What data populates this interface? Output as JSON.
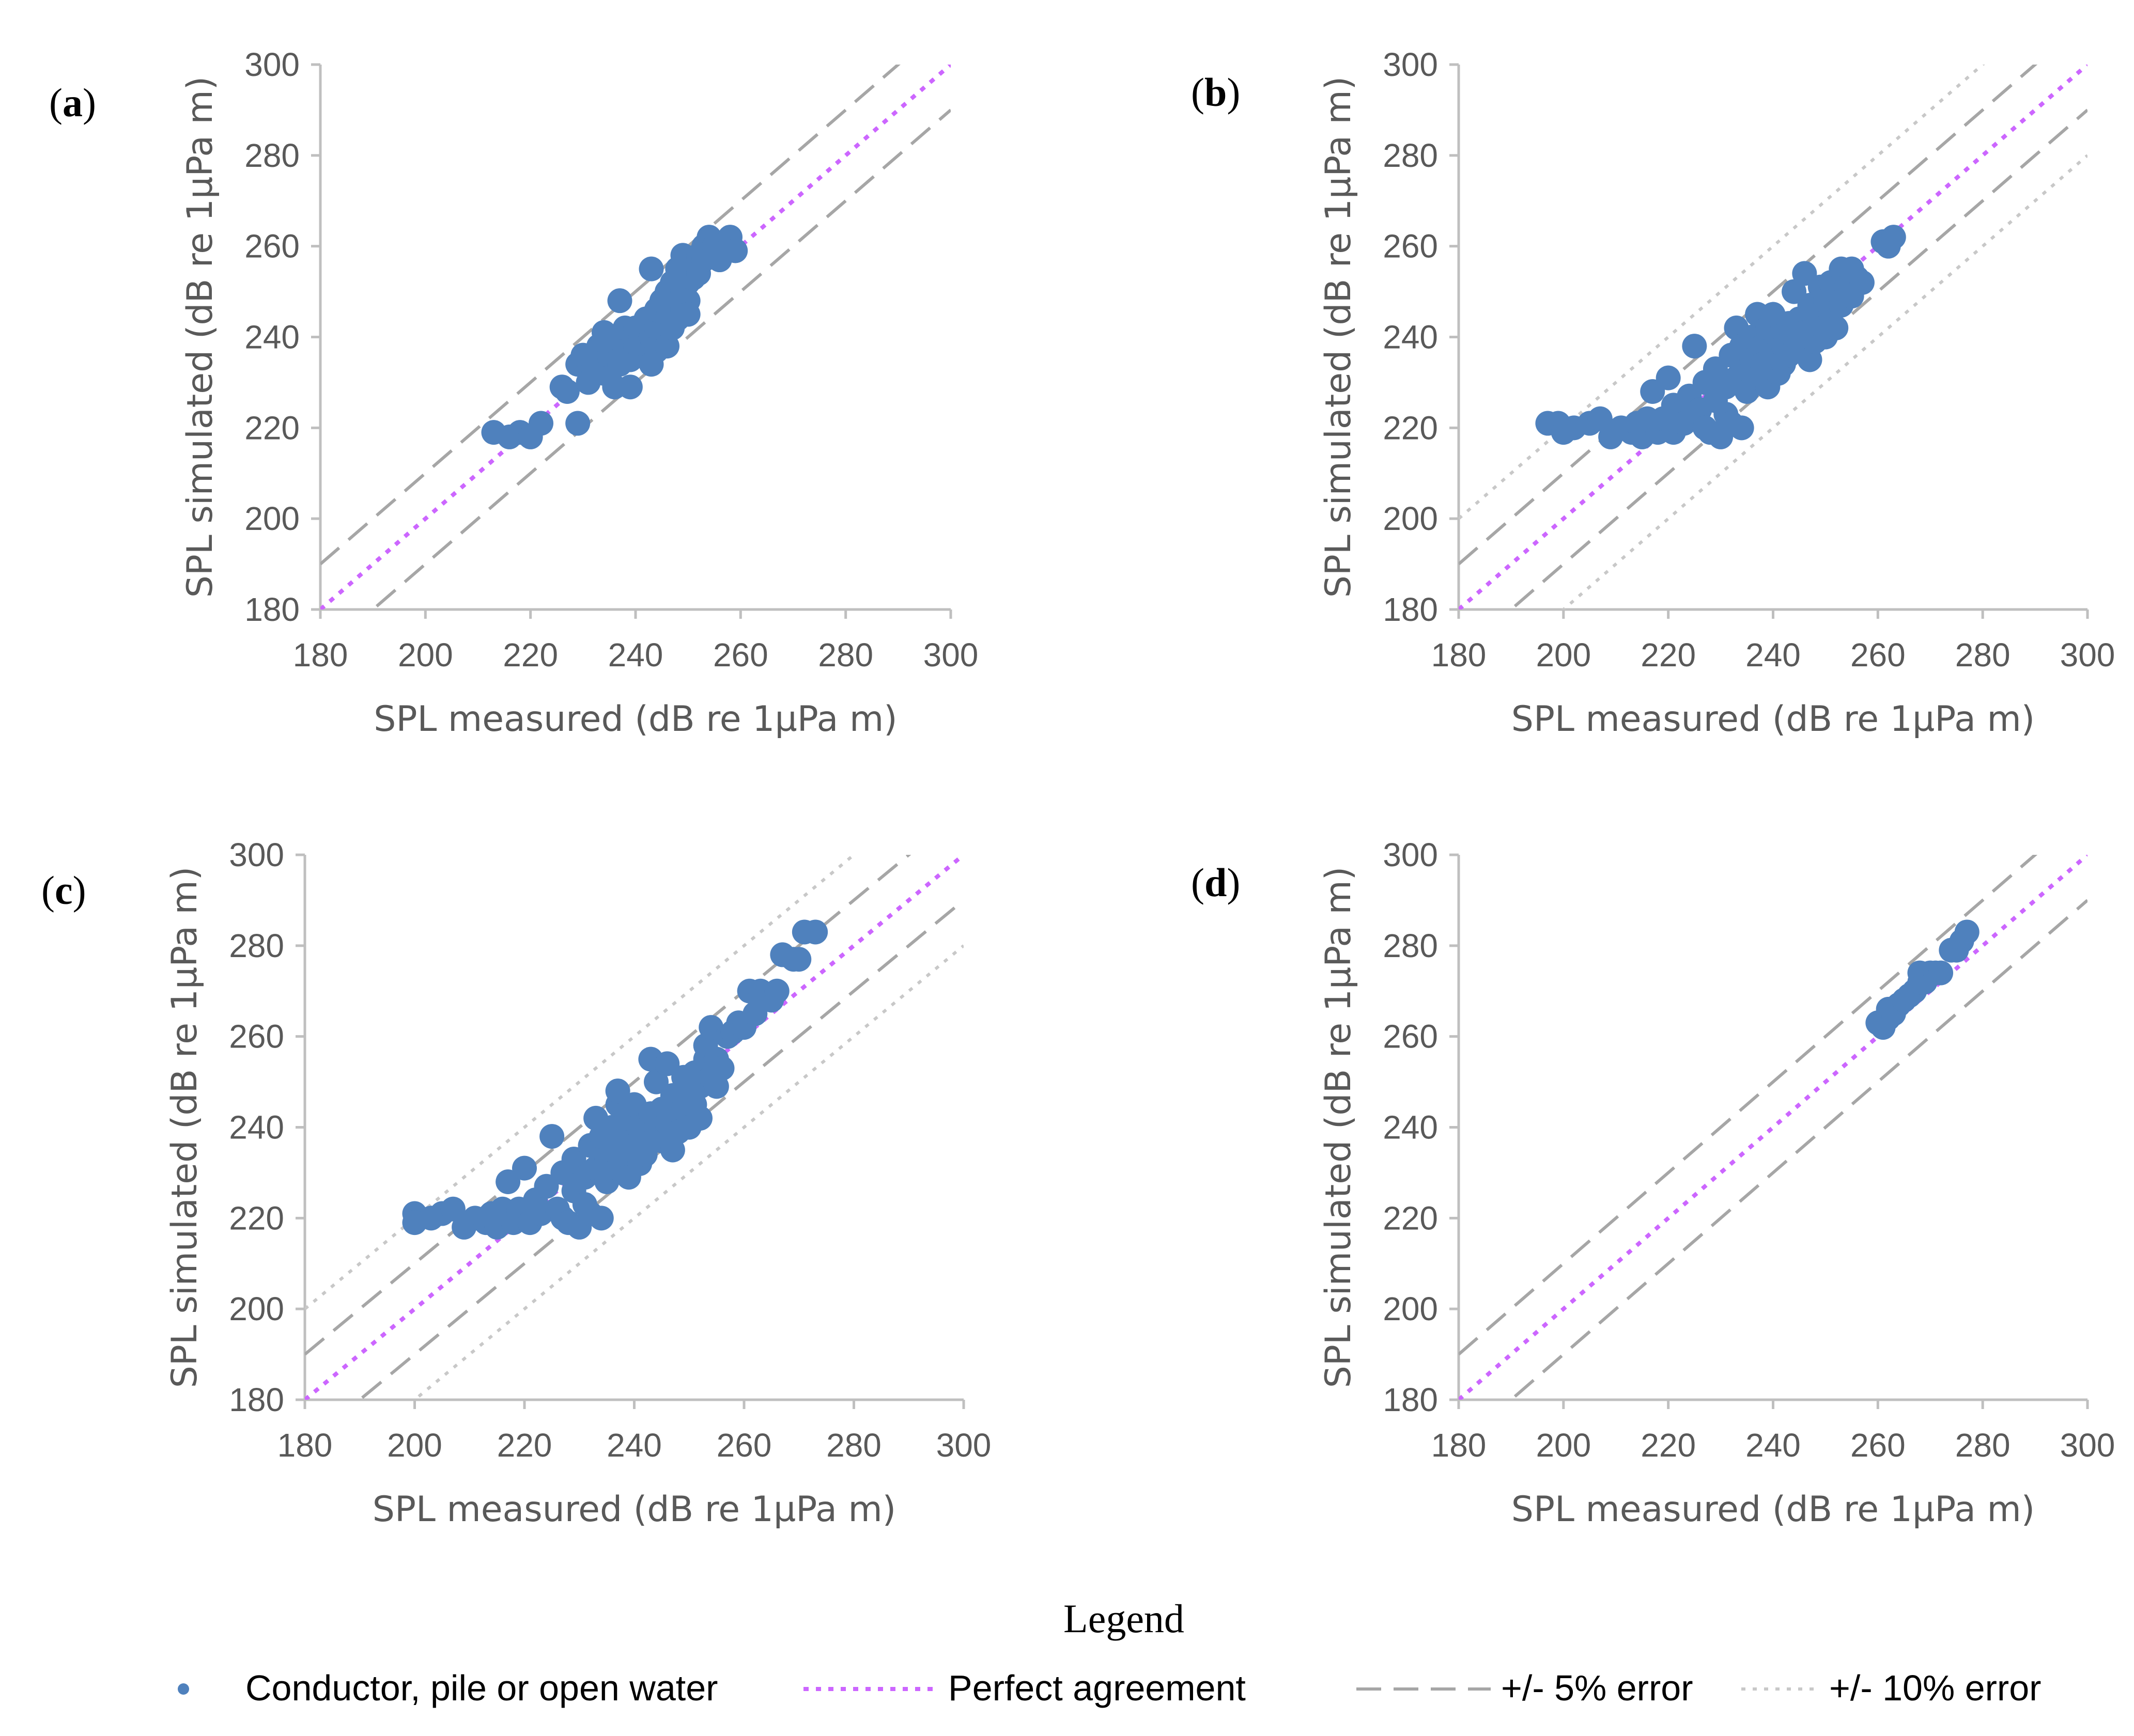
{
  "chart_data": [
    {
      "panel": "(a)",
      "type": "scatter",
      "xlabel": "SPL measured (dB re 1µPa m)",
      "ylabel": "SPL simulated (dB re 1µPa m)",
      "xlim": [
        180,
        300
      ],
      "ylim": [
        180,
        300
      ],
      "xticks": [
        180,
        200,
        220,
        240,
        260,
        280,
        300
      ],
      "yticks": [
        180,
        200,
        220,
        240,
        260,
        280,
        300
      ],
      "error_bands": [
        5
      ],
      "points": [
        [
          213,
          219
        ],
        [
          216,
          218
        ],
        [
          218,
          219
        ],
        [
          220,
          218
        ],
        [
          222,
          221
        ],
        [
          226,
          229
        ],
        [
          227,
          228
        ],
        [
          229,
          221
        ],
        [
          229,
          234
        ],
        [
          230,
          236
        ],
        [
          231,
          230
        ],
        [
          232,
          233
        ],
        [
          233,
          238
        ],
        [
          234,
          232
        ],
        [
          234,
          241
        ],
        [
          235,
          236
        ],
        [
          236,
          229
        ],
        [
          236,
          239
        ],
        [
          237,
          248
        ],
        [
          237,
          234
        ],
        [
          238,
          237
        ],
        [
          238,
          242
        ],
        [
          239,
          229
        ],
        [
          239,
          235
        ],
        [
          240,
          238
        ],
        [
          240,
          242
        ],
        [
          241,
          236
        ],
        [
          241,
          240
        ],
        [
          242,
          244
        ],
        [
          242,
          238
        ],
        [
          243,
          234
        ],
        [
          243,
          240
        ],
        [
          243,
          255
        ],
        [
          244,
          237
        ],
        [
          244,
          242
        ],
        [
          244,
          246
        ],
        [
          245,
          240
        ],
        [
          245,
          248
        ],
        [
          246,
          238
        ],
        [
          246,
          244
        ],
        [
          246,
          250
        ],
        [
          247,
          242
        ],
        [
          247,
          246
        ],
        [
          247,
          252
        ],
        [
          248,
          248
        ],
        [
          248,
          244
        ],
        [
          248,
          255
        ],
        [
          249,
          246
        ],
        [
          249,
          250
        ],
        [
          249,
          258
        ],
        [
          250,
          252
        ],
        [
          250,
          248
        ],
        [
          250,
          245
        ],
        [
          251,
          256
        ],
        [
          251,
          253
        ],
        [
          252,
          258
        ],
        [
          252,
          254
        ],
        [
          253,
          260
        ],
        [
          253,
          257
        ],
        [
          254,
          258
        ],
        [
          254,
          262
        ],
        [
          255,
          260
        ],
        [
          256,
          257
        ],
        [
          257,
          261
        ],
        [
          258,
          262
        ],
        [
          259,
          259
        ]
      ]
    },
    {
      "panel": "(b)",
      "type": "scatter",
      "xlabel": "SPL measured (dB re 1µPa m)",
      "ylabel": "SPL simulated (dB re 1µPa m)",
      "xlim": [
        180,
        300
      ],
      "ylim": [
        180,
        300
      ],
      "xticks": [
        180,
        200,
        220,
        240,
        260,
        280,
        300
      ],
      "yticks": [
        180,
        200,
        220,
        240,
        260,
        280,
        300
      ],
      "error_bands": [
        5,
        10
      ],
      "points": [
        [
          197,
          221
        ],
        [
          199,
          221
        ],
        [
          200,
          219
        ],
        [
          202,
          220
        ],
        [
          205,
          221
        ],
        [
          207,
          222
        ],
        [
          209,
          218
        ],
        [
          211,
          220
        ],
        [
          213,
          219
        ],
        [
          214,
          221
        ],
        [
          215,
          218
        ],
        [
          216,
          222
        ],
        [
          217,
          228
        ],
        [
          218,
          219
        ],
        [
          219,
          222
        ],
        [
          220,
          231
        ],
        [
          221,
          219
        ],
        [
          221,
          225
        ],
        [
          222,
          223
        ],
        [
          223,
          221
        ],
        [
          224,
          227
        ],
        [
          225,
          238
        ],
        [
          225,
          222
        ],
        [
          226,
          224
        ],
        [
          227,
          220
        ],
        [
          227,
          230
        ],
        [
          228,
          219
        ],
        [
          229,
          226
        ],
        [
          229,
          233
        ],
        [
          230,
          218
        ],
        [
          231,
          223
        ],
        [
          231,
          229
        ],
        [
          232,
          221
        ],
        [
          232,
          236
        ],
        [
          233,
          242
        ],
        [
          233,
          231
        ],
        [
          234,
          220
        ],
        [
          234,
          238
        ],
        [
          235,
          233
        ],
        [
          235,
          228
        ],
        [
          236,
          240
        ],
        [
          236,
          235
        ],
        [
          237,
          245
        ],
        [
          237,
          231
        ],
        [
          238,
          238
        ],
        [
          238,
          234
        ],
        [
          239,
          242
        ],
        [
          239,
          229
        ],
        [
          240,
          236
        ],
        [
          240,
          245
        ],
        [
          241,
          232
        ],
        [
          241,
          240
        ],
        [
          242,
          238
        ],
        [
          242,
          234
        ],
        [
          243,
          243
        ],
        [
          243,
          236
        ],
        [
          244,
          240
        ],
        [
          244,
          250
        ],
        [
          245,
          237
        ],
        [
          245,
          244
        ],
        [
          246,
          254
        ],
        [
          246,
          241
        ],
        [
          247,
          235
        ],
        [
          247,
          247
        ],
        [
          248,
          243
        ],
        [
          248,
          239
        ],
        [
          249,
          251
        ],
        [
          249,
          244
        ],
        [
          250,
          240
        ],
        [
          250,
          248
        ],
        [
          251,
          252
        ],
        [
          251,
          245
        ],
        [
          252,
          249
        ],
        [
          252,
          242
        ],
        [
          253,
          255
        ],
        [
          253,
          247
        ],
        [
          254,
          251
        ],
        [
          255,
          255
        ],
        [
          255,
          249
        ],
        [
          256,
          253
        ],
        [
          257,
          252
        ],
        [
          261,
          261
        ],
        [
          262,
          260
        ],
        [
          263,
          262
        ]
      ]
    },
    {
      "panel": "(c)",
      "type": "scatter",
      "xlabel": "SPL measured (dB re 1µPa m)",
      "ylabel": "SPL simulated (dB re 1µPa m)",
      "xlim": [
        180,
        300
      ],
      "ylim": [
        180,
        300
      ],
      "xticks": [
        180,
        200,
        220,
        240,
        260,
        280,
        300
      ],
      "yticks": [
        180,
        200,
        220,
        240,
        260,
        280,
        300
      ],
      "error_bands": [
        5,
        10
      ],
      "points": [
        [
          200,
          221
        ],
        [
          200,
          219
        ],
        [
          203,
          220
        ],
        [
          205,
          221
        ],
        [
          207,
          222
        ],
        [
          209,
          218
        ],
        [
          211,
          220
        ],
        [
          213,
          219
        ],
        [
          214,
          221
        ],
        [
          215,
          218
        ],
        [
          216,
          222
        ],
        [
          217,
          228
        ],
        [
          218,
          219
        ],
        [
          219,
          222
        ],
        [
          220,
          231
        ],
        [
          221,
          219
        ],
        [
          222,
          224
        ],
        [
          223,
          221
        ],
        [
          224,
          227
        ],
        [
          225,
          238
        ],
        [
          226,
          222
        ],
        [
          227,
          220
        ],
        [
          227,
          230
        ],
        [
          228,
          219
        ],
        [
          229,
          226
        ],
        [
          229,
          233
        ],
        [
          230,
          218
        ],
        [
          231,
          223
        ],
        [
          231,
          229
        ],
        [
          232,
          221
        ],
        [
          232,
          236
        ],
        [
          233,
          242
        ],
        [
          233,
          231
        ],
        [
          234,
          220
        ],
        [
          234,
          238
        ],
        [
          235,
          233
        ],
        [
          235,
          228
        ],
        [
          236,
          240
        ],
        [
          236,
          235
        ],
        [
          237,
          245
        ],
        [
          237,
          231
        ],
        [
          237,
          248
        ],
        [
          238,
          238
        ],
        [
          238,
          234
        ],
        [
          239,
          242
        ],
        [
          239,
          229
        ],
        [
          240,
          236
        ],
        [
          240,
          245
        ],
        [
          241,
          232
        ],
        [
          241,
          240
        ],
        [
          242,
          238
        ],
        [
          242,
          234
        ],
        [
          243,
          243
        ],
        [
          243,
          255
        ],
        [
          244,
          240
        ],
        [
          244,
          250
        ],
        [
          245,
          237
        ],
        [
          245,
          244
        ],
        [
          246,
          254
        ],
        [
          246,
          241
        ],
        [
          247,
          235
        ],
        [
          247,
          247
        ],
        [
          248,
          243
        ],
        [
          248,
          239
        ],
        [
          249,
          251
        ],
        [
          249,
          244
        ],
        [
          250,
          240
        ],
        [
          250,
          248
        ],
        [
          251,
          252
        ],
        [
          251,
          245
        ],
        [
          252,
          249
        ],
        [
          252,
          242
        ],
        [
          253,
          255
        ],
        [
          253,
          258
        ],
        [
          254,
          251
        ],
        [
          254,
          262
        ],
        [
          255,
          255
        ],
        [
          255,
          249
        ],
        [
          256,
          253
        ],
        [
          257,
          260
        ],
        [
          258,
          261
        ],
        [
          259,
          263
        ],
        [
          260,
          262
        ],
        [
          261,
          270
        ],
        [
          262,
          265
        ],
        [
          263,
          270
        ],
        [
          265,
          268
        ],
        [
          266,
          270
        ],
        [
          267,
          278
        ],
        [
          269,
          277
        ],
        [
          270,
          277
        ],
        [
          271,
          283
        ],
        [
          273,
          283
        ]
      ]
    },
    {
      "panel": "(d)",
      "type": "scatter",
      "xlabel": "SPL measured (dB re 1µPa m)",
      "ylabel": "SPL simulated (dB re 1µPa m)",
      "xlim": [
        180,
        300
      ],
      "ylim": [
        180,
        300
      ],
      "xticks": [
        180,
        200,
        220,
        240,
        260,
        280,
        300
      ],
      "yticks": [
        180,
        200,
        220,
        240,
        260,
        280,
        300
      ],
      "error_bands": [
        5
      ],
      "points": [
        [
          260,
          263
        ],
        [
          261,
          262
        ],
        [
          262,
          264
        ],
        [
          262,
          266
        ],
        [
          263,
          265
        ],
        [
          264,
          267
        ],
        [
          265,
          268
        ],
        [
          266,
          269
        ],
        [
          267,
          270
        ],
        [
          268,
          272
        ],
        [
          268,
          274
        ],
        [
          269,
          272
        ],
        [
          270,
          274
        ],
        [
          271,
          274
        ],
        [
          272,
          274
        ],
        [
          274,
          279
        ],
        [
          275,
          279
        ],
        [
          276,
          281
        ],
        [
          277,
          283
        ]
      ]
    }
  ],
  "colors": {
    "points": "#4f81bd",
    "perfect": "#cc66ff",
    "err5": "#a6a6a6",
    "err10": "#c8c8c8",
    "axis": "#bfbfbf",
    "text": "#595959"
  },
  "legend": {
    "title": "Legend",
    "items": [
      {
        "key": "points",
        "label": "Conductor, pile or open water"
      },
      {
        "key": "perfect",
        "label": "Perfect agreement"
      },
      {
        "key": "err5",
        "label": "+/- 5% error"
      },
      {
        "key": "err10",
        "label": "+/- 10% error"
      }
    ]
  }
}
